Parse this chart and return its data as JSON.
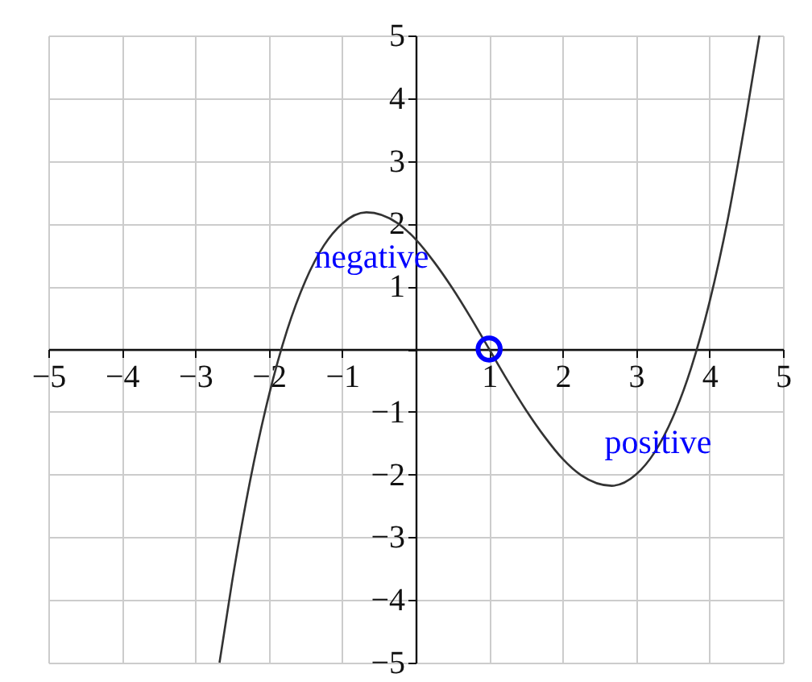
{
  "chart_data": {
    "type": "line",
    "series": [
      {
        "color": "#333333",
        "x": [
          -2.67,
          -2.5,
          -2.25,
          -2,
          -1.75,
          -1.5,
          -1.25,
          -1,
          -0.67,
          -0.25,
          0,
          0.25,
          0.5,
          0.75,
          1,
          1.25,
          1.5,
          1.75,
          2,
          2.25,
          2.67,
          3,
          3.25,
          3.5,
          3.75,
          4,
          4.25,
          4.5,
          4.68
        ],
        "values": [
          -5,
          -3.72,
          -2.08,
          -0.75,
          0.3,
          1.09,
          1.65,
          2,
          2.18,
          2.01,
          1.75,
          1.39,
          0.97,
          0.5,
          0,
          -0.5,
          -0.97,
          -1.39,
          -1.75,
          -2.01,
          -2.18,
          -2,
          -1.65,
          -1.09,
          -0.3,
          0.75,
          2.08,
          3.72,
          5
        ]
      },
      {
        "type": "scatter",
        "color": "#0000ff",
        "marker": "circle",
        "x": [
          1
        ],
        "values": [
          0
        ]
      }
    ],
    "annotations": [
      "negative",
      "positive"
    ],
    "xlim": [
      -5,
      5
    ],
    "ylim": [
      -5,
      5
    ],
    "xticks": [
      -5,
      -4,
      -3,
      -2,
      -1,
      {
        "value": 0,
        "label": null
      },
      1,
      2,
      3,
      4,
      5
    ],
    "yticks": [
      -5,
      -4,
      -3,
      -2,
      -1,
      {
        "value": 0,
        "label": null
      },
      1,
      2,
      3,
      4,
      5
    ],
    "grid": true
  }
}
